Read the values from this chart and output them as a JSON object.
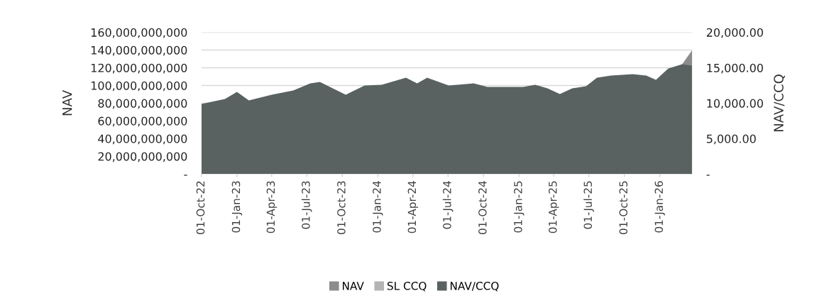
{
  "chart_data": {
    "type": "area",
    "ylabel": "NAV",
    "y2label": "NAV/CCQ",
    "xlim": [
      "2022-10-01",
      "2026-03-26"
    ],
    "xticks": [
      {
        "value": "2022-10-01",
        "label": "01-Oct-22"
      },
      {
        "value": "2023-01-01",
        "label": "01-Jan-23"
      },
      {
        "value": "2023-04-01",
        "label": "01-Apr-23"
      },
      {
        "value": "2023-07-01",
        "label": "01-Jul-23"
      },
      {
        "value": "2023-10-01",
        "label": "01-Oct-23"
      },
      {
        "value": "2024-01-01",
        "label": "01-Jan-24"
      },
      {
        "value": "2024-04-01",
        "label": "01-Apr-24"
      },
      {
        "value": "2024-07-01",
        "label": "01-Jul-24"
      },
      {
        "value": "2024-10-01",
        "label": "01-Oct-24"
      },
      {
        "value": "2025-01-01",
        "label": "01-Jan-25"
      },
      {
        "value": "2025-04-01",
        "label": "01-Apr-25"
      },
      {
        "value": "2025-07-01",
        "label": "01-Jul-25"
      },
      {
        "value": "2025-10-01",
        "label": "01-Oct-25"
      },
      {
        "value": "2026-01-01",
        "label": "01-Jan-26"
      }
    ],
    "ylim": [
      0,
      160000000000
    ],
    "yticks": [
      {
        "value": 0,
        "label": "-"
      },
      {
        "value": 20000000000,
        "label": "20,000,000,000"
      },
      {
        "value": 40000000000,
        "label": "40,000,000,000"
      },
      {
        "value": 60000000000,
        "label": "60,000,000,000"
      },
      {
        "value": 80000000000,
        "label": "80,000,000,000"
      },
      {
        "value": 100000000000,
        "label": "100,000,000,000"
      },
      {
        "value": 120000000000,
        "label": "120,000,000,000"
      },
      {
        "value": 140000000000,
        "label": "140,000,000,000"
      },
      {
        "value": 160000000000,
        "label": "160,000,000,000"
      }
    ],
    "y2lim": [
      0,
      20000
    ],
    "y2ticks": [
      {
        "value": 0,
        "label": "-"
      },
      {
        "value": 5000,
        "label": "5,000.00"
      },
      {
        "value": 10000,
        "label": "10,000.00"
      },
      {
        "value": 15000,
        "label": "15,000.00"
      },
      {
        "value": 20000,
        "label": "20,000.00"
      }
    ],
    "grid": "y",
    "legend": "bottom",
    "series": [
      {
        "name": "NAV",
        "color": "#8c8c8c",
        "x": [
          "2026-02-28",
          "2026-03-26"
        ],
        "values": [
          124000000000,
          140000000000
        ]
      },
      {
        "name": "SL CCQ",
        "color": "#b4b4b4"
      },
      {
        "name": "NAV/CCQ",
        "color": "#596161",
        "axis": "y2",
        "x": [
          "2022-10-01",
          "2022-12-01",
          "2023-01-01",
          "2023-02-01",
          "2023-04-01",
          "2023-05-27",
          "2023-07-10",
          "2023-08-04",
          "2023-10-10",
          "2023-11-28",
          "2024-01-11",
          "2024-03-14",
          "2024-04-12",
          "2024-05-08",
          "2024-07-03",
          "2024-09-06",
          "2024-10-11",
          "2025-01-12",
          "2025-02-12",
          "2025-03-16",
          "2025-04-17",
          "2025-05-19",
          "2025-06-24",
          "2025-07-22",
          "2025-08-27",
          "2025-10-23",
          "2025-11-27",
          "2025-12-22",
          "2026-01-23",
          "2026-02-28",
          "2026-03-25"
        ],
        "values": [
          9900,
          10600,
          11600,
          10400,
          11200,
          11800,
          12800,
          13000,
          11200,
          12500,
          12600,
          13600,
          12800,
          13600,
          12500,
          12800,
          12300,
          12300,
          12600,
          12100,
          11300,
          12100,
          12400,
          13600,
          13900,
          14100,
          13900,
          13300,
          14900,
          15500,
          15300
        ]
      }
    ]
  }
}
